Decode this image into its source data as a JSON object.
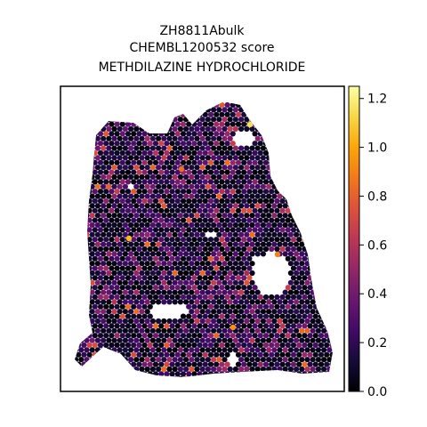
{
  "chart_data": {
    "type": "scatter",
    "subtype": "spatial-spot-map",
    "title": [
      "ZH8811Abulk",
      "CHEMBL1200532 score",
      "METHDILAZINE HYDROCHLORIDE"
    ],
    "xlabel": "",
    "ylabel": "",
    "grid": false,
    "axis_ticks": false,
    "colormap": "inferno",
    "colorbar": {
      "range": [
        0.0,
        1.25
      ],
      "ticks": [
        0.0,
        0.2,
        0.4,
        0.6,
        0.8,
        1.0,
        1.2
      ],
      "tick_labels": [
        "0.0",
        "0.2",
        "0.4",
        "0.6",
        "0.8",
        "1.0",
        "1.2"
      ]
    },
    "value_distribution": {
      "typical_range": [
        0.0,
        0.5
      ],
      "notable_high_spots": [
        {
          "region": "upper-right edge",
          "value": 1.15
        },
        {
          "region": "upper center",
          "value": 0.85
        },
        {
          "region": "upper left",
          "value": 0.8
        },
        {
          "region": "center left",
          "value": 1.05
        },
        {
          "region": "right edge",
          "value": 0.9
        },
        {
          "region": "lower center-right",
          "value": 0.95
        }
      ]
    },
    "colors": {
      "frame": "#000000",
      "background": "#ffffff",
      "low": "#000004",
      "mid": "#bc3754",
      "high": "#fcffa4"
    }
  }
}
